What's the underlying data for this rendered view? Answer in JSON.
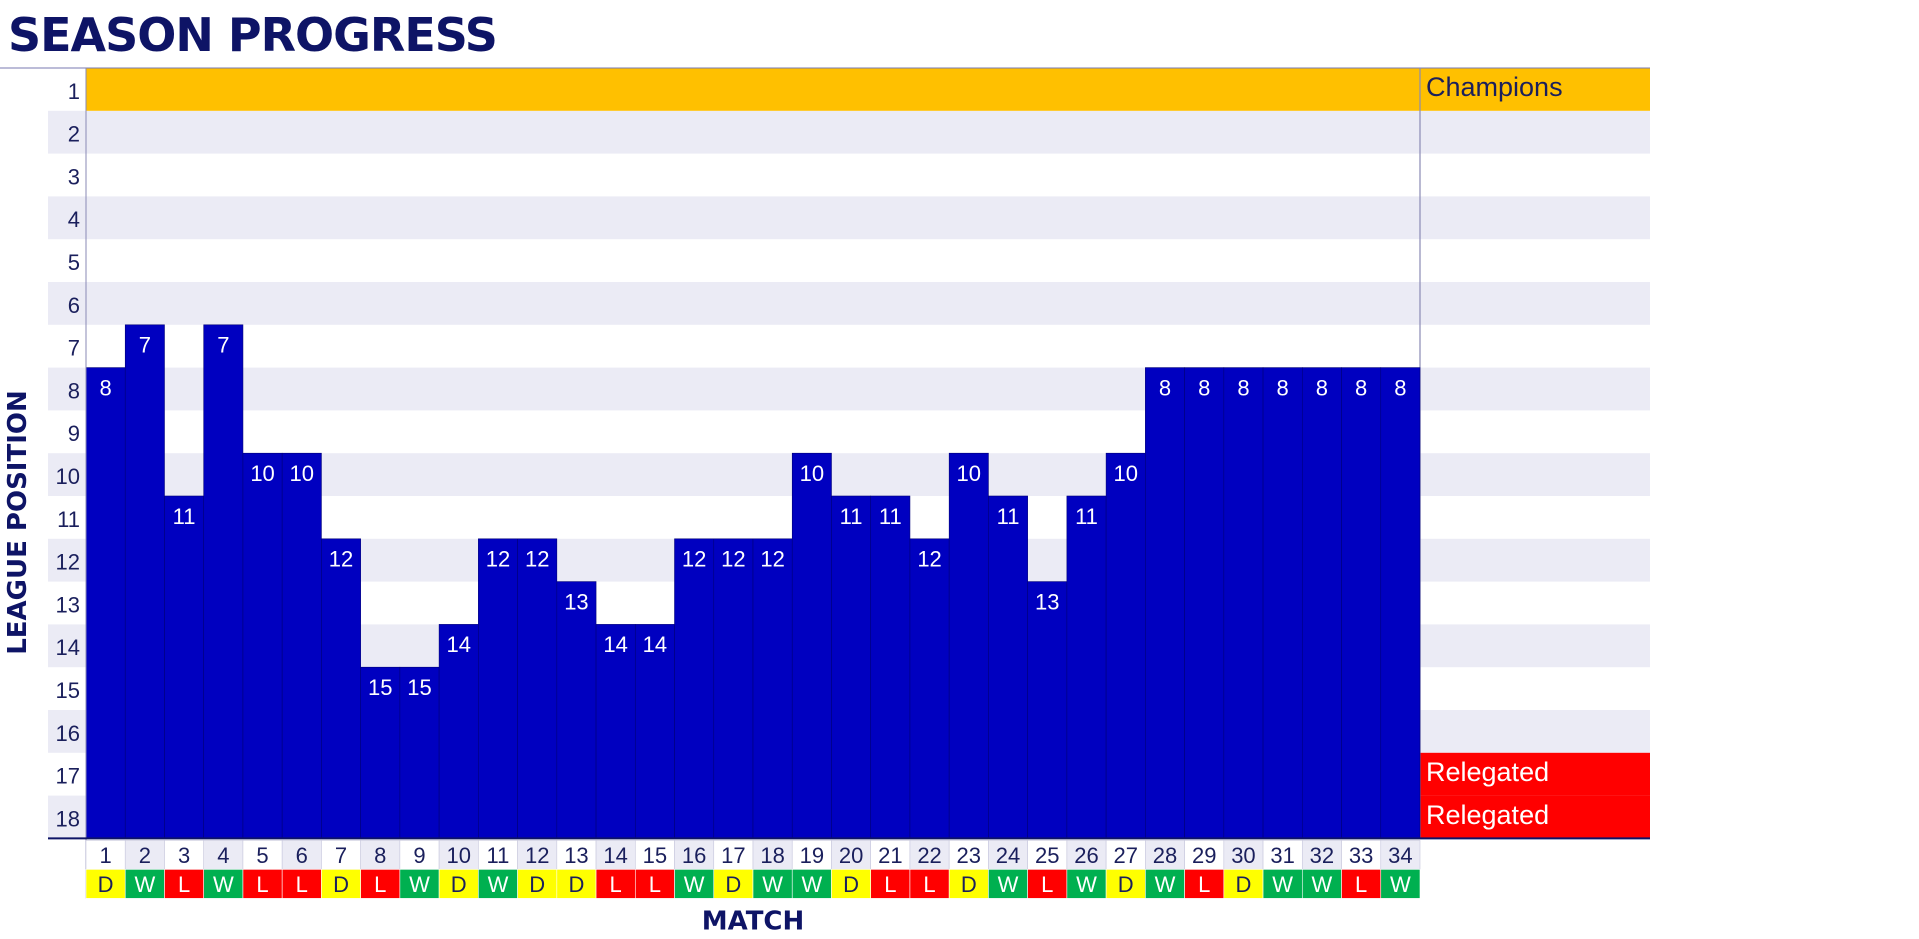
{
  "title": "SEASON PROGRESS",
  "colors": {
    "bar": "#0000c0",
    "band_alt": "#ebebf5",
    "champions": "#ffc000",
    "relegated": "#ff0000",
    "win": "#00b050",
    "draw": "#ffff00",
    "loss": "#ff0000",
    "text_dark": "#1a1f5c"
  },
  "chart_data": {
    "type": "bar",
    "xlabel": "MATCH",
    "ylabel": "LEAGUE POSITION",
    "ylim": [
      1,
      18
    ],
    "y_inverted": true,
    "categories": [
      "1",
      "2",
      "3",
      "4",
      "5",
      "6",
      "7",
      "8",
      "9",
      "10",
      "11",
      "12",
      "13",
      "14",
      "15",
      "16",
      "17",
      "18",
      "19",
      "20",
      "21",
      "22",
      "23",
      "24",
      "25",
      "26",
      "27",
      "28",
      "29",
      "30",
      "31",
      "32",
      "33",
      "34"
    ],
    "values": [
      8,
      7,
      11,
      7,
      10,
      10,
      12,
      15,
      15,
      14,
      12,
      12,
      13,
      14,
      14,
      12,
      12,
      12,
      10,
      11,
      11,
      12,
      10,
      11,
      13,
      11,
      10,
      8,
      8,
      8,
      8,
      8,
      8,
      8
    ],
    "results": [
      "D",
      "W",
      "L",
      "W",
      "L",
      "L",
      "D",
      "L",
      "W",
      "D",
      "W",
      "D",
      "D",
      "L",
      "L",
      "W",
      "D",
      "W",
      "W",
      "D",
      "L",
      "L",
      "D",
      "W",
      "L",
      "W",
      "D",
      "W",
      "L",
      "D",
      "W",
      "W",
      "L",
      "W"
    ],
    "zones": [
      {
        "position": 1,
        "label": "Champions"
      },
      {
        "position": 17,
        "label": "Relegated"
      },
      {
        "position": 18,
        "label": "Relegated"
      }
    ]
  }
}
